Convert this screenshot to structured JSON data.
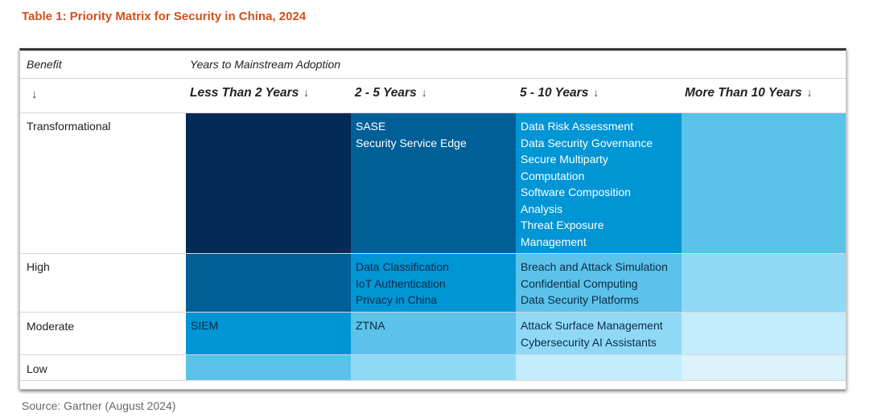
{
  "title": "Table 1: Priority Matrix for Security in China, 2024",
  "header": {
    "benefit": "Benefit",
    "years": "Years to Mainstream Adoption",
    "arrow": "↓",
    "columns": [
      "Less Than 2 Years",
      "2 - 5 Years",
      "5 - 10 Years",
      "More Than 10 Years"
    ]
  },
  "rows": [
    {
      "label": "Transformational",
      "cells": [
        [],
        [
          "SASE",
          "Security Service Edge"
        ],
        [
          "Data Risk Assessment",
          "Data Security Governance",
          "Secure Multiparty",
          "Computation",
          "Software Composition",
          "Analysis",
          "Threat Exposure",
          "Management"
        ],
        []
      ]
    },
    {
      "label": "High",
      "cells": [
        [],
        [
          "Data Classification",
          "IoT Authentication",
          "Privacy in China"
        ],
        [
          "Breach and Attack Simulation",
          "Confidential Computing",
          "Data Security Platforms"
        ],
        []
      ]
    },
    {
      "label": "Moderate",
      "cells": [
        [
          "SIEM"
        ],
        [
          "ZTNA"
        ],
        [
          "Attack Surface Management",
          "Cybersecurity AI Assistants"
        ],
        []
      ]
    },
    {
      "label": "Low",
      "cells": [
        [],
        [],
        [],
        []
      ]
    }
  ],
  "colors": {
    "title": "#d2501a",
    "navy": "#022a55",
    "blue_dark": "#005f97",
    "blue_mid": "#0095d5",
    "blue_light": "#5bc2ea",
    "blue_lighter": "#8fd9f7",
    "blue_pale": "#c3ecfd",
    "blue_palest": "#dcf3fc"
  },
  "source": "Source: Gartner (August 2024)"
}
